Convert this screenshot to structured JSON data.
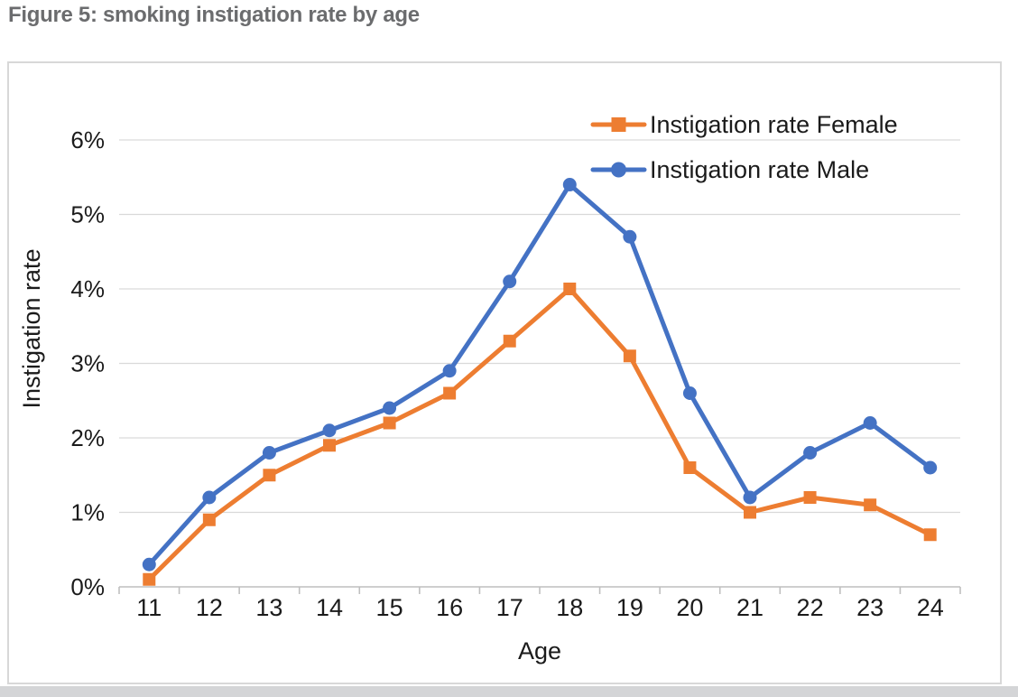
{
  "page": {
    "figure_title": "Figure 5: smoking instigation rate by age"
  },
  "colors": {
    "female_series": "#ED7D31",
    "male_series": "#4472C4",
    "gridline": "#D9D9D9",
    "axis_line": "#BFBFBF",
    "tick_text": "#1B1B1B",
    "title_gray": "#6B6C6E",
    "chart_border": "#D8D8D8",
    "page_bottom_edge": "#D4D5D7"
  },
  "chart_data": {
    "type": "line",
    "title": "Figure 5: smoking instigation rate by age",
    "xlabel": "Age",
    "ylabel": "Instigation rate",
    "categories": [
      "11",
      "12",
      "13",
      "14",
      "15",
      "16",
      "17",
      "18",
      "19",
      "20",
      "21",
      "22",
      "23",
      "24"
    ],
    "ytick_labels": [
      "0%",
      "1%",
      "2%",
      "3%",
      "4%",
      "5%",
      "6%"
    ],
    "ylim": [
      0,
      6
    ],
    "grid": true,
    "legend_position": "top-right-inside",
    "series": [
      {
        "name": "Instigation rate Female",
        "marker": "square",
        "color": "#ED7D31",
        "values": [
          0.1,
          0.9,
          1.5,
          1.9,
          2.2,
          2.6,
          3.3,
          4.0,
          3.1,
          1.6,
          1.0,
          1.2,
          1.1,
          0.7
        ]
      },
      {
        "name": "Instigation rate Male",
        "marker": "circle",
        "color": "#4472C4",
        "values": [
          0.3,
          1.2,
          1.8,
          2.1,
          2.4,
          2.9,
          4.1,
          5.4,
          4.7,
          2.6,
          1.2,
          1.8,
          2.2,
          1.6
        ]
      }
    ]
  }
}
